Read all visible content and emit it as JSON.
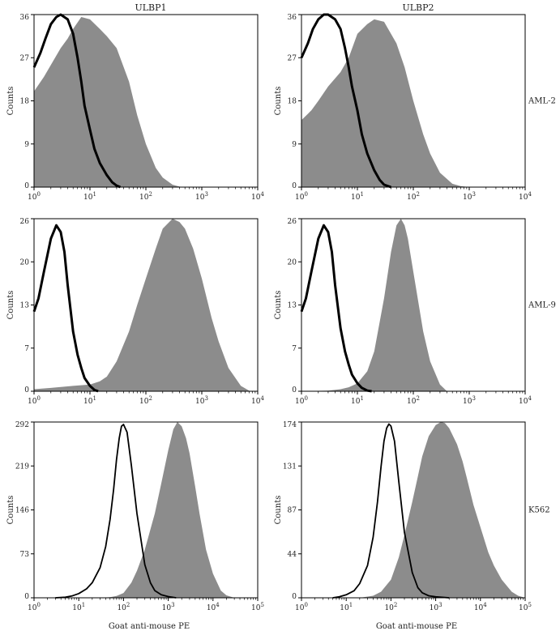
{
  "chart_data": [
    {
      "type": "area",
      "column_title": "ULBP1",
      "row_label": "",
      "ylabel": "Counts",
      "xlabel": "",
      "x_scale": "log",
      "xlim_exp": [
        0,
        4
      ],
      "x_tick_base": "10",
      "x_tick_exps": [
        "0",
        "1",
        "2",
        "3",
        "4"
      ],
      "yticks": [
        "0",
        "9",
        "18",
        "27",
        "36"
      ],
      "ylim": [
        0,
        36
      ],
      "series": [
        {
          "name": "",
          "style": "filled",
          "x": [
            1,
            1.5,
            2,
            3,
            4,
            5,
            7,
            10,
            15,
            20,
            30,
            50,
            70,
            100,
            150,
            200,
            300,
            400,
            500
          ],
          "y": [
            20,
            23,
            25.5,
            29,
            31,
            33,
            35.5,
            35,
            33,
            31.5,
            29,
            22,
            15,
            9,
            4,
            2,
            0.5,
            0.1,
            0
          ]
        },
        {
          "name": "",
          "style": "outline",
          "x": [
            1,
            1.3,
            1.6,
            2,
            2.5,
            3,
            4,
            5,
            6,
            7,
            8,
            10,
            12,
            15,
            20,
            25,
            30,
            35
          ],
          "y": [
            25,
            28,
            31,
            34,
            35.5,
            36,
            35,
            32,
            27,
            22,
            17,
            12,
            8,
            5,
            2.5,
            1,
            0.3,
            0
          ]
        }
      ]
    },
    {
      "type": "area",
      "column_title": "ULBP2",
      "row_label": "AML-2",
      "ylabel": "Counts",
      "xlabel": "",
      "x_scale": "log",
      "xlim_exp": [
        0,
        4
      ],
      "x_tick_base": "10",
      "x_tick_exps": [
        "0",
        "1",
        "2",
        "3",
        "4"
      ],
      "yticks": [
        "0",
        "9",
        "18",
        "27",
        "36"
      ],
      "ylim": [
        0,
        36
      ],
      "series": [
        {
          "name": "",
          "style": "filled",
          "x": [
            1,
            1.5,
            2,
            3,
            5,
            7,
            10,
            15,
            20,
            30,
            50,
            70,
            100,
            150,
            200,
            300,
            500,
            700,
            1000
          ],
          "y": [
            14,
            16,
            18,
            21,
            24,
            27,
            32,
            34,
            35,
            34.5,
            30,
            25,
            18,
            11,
            7,
            3,
            0.7,
            0.2,
            0
          ]
        },
        {
          "name": "",
          "style": "outline",
          "x": [
            1,
            1.3,
            1.6,
            2,
            2.5,
            3,
            4,
            5,
            6,
            7,
            8,
            10,
            12,
            15,
            20,
            25,
            30,
            40
          ],
          "y": [
            27,
            30,
            33,
            35,
            36,
            36,
            35,
            33,
            29,
            25,
            21,
            16,
            11,
            7,
            3.5,
            1.5,
            0.5,
            0
          ]
        }
      ]
    },
    {
      "type": "area",
      "column_title": "",
      "row_label": "",
      "ylabel": "Counts",
      "xlabel": "",
      "x_scale": "log",
      "xlim_exp": [
        0,
        4
      ],
      "x_tick_base": "10",
      "x_tick_exps": [
        "0",
        "1",
        "2",
        "3",
        "4"
      ],
      "yticks": [
        "0",
        "7",
        "13",
        "20",
        "26"
      ],
      "ylim": [
        0,
        26
      ],
      "series": [
        {
          "name": "",
          "style": "filled",
          "x": [
            1,
            2,
            5,
            10,
            15,
            20,
            30,
            50,
            70,
            100,
            150,
            200,
            300,
            400,
            500,
            700,
            1000,
            1500,
            2000,
            3000,
            5000,
            7000
          ],
          "y": [
            0.3,
            0.5,
            0.8,
            1,
            1.5,
            2.2,
            4.5,
            9,
            13,
            17,
            21.5,
            24.5,
            26,
            25.5,
            24.5,
            21.5,
            17,
            11,
            7.5,
            3.5,
            0.8,
            0.1
          ]
        },
        {
          "name": "",
          "style": "outline",
          "x": [
            1,
            1.2,
            1.5,
            2,
            2.5,
            3,
            3.5,
            4,
            5,
            6,
            7,
            8,
            10,
            12,
            14
          ],
          "y": [
            12,
            14,
            18,
            23,
            25,
            24,
            21,
            16,
            9,
            5.5,
            3.5,
            2,
            0.8,
            0.2,
            0
          ]
        }
      ]
    },
    {
      "type": "area",
      "column_title": "",
      "row_label": "AML-9",
      "ylabel": "Counts",
      "xlabel": "",
      "x_scale": "log",
      "xlim_exp": [
        0,
        4
      ],
      "x_tick_base": "10",
      "x_tick_exps": [
        "0",
        "1",
        "2",
        "3",
        "4"
      ],
      "yticks": [
        "0",
        "7",
        "13",
        "20",
        "26"
      ],
      "ylim": [
        0,
        26
      ],
      "series": [
        {
          "name": "",
          "style": "filled",
          "x": [
            1,
            3,
            5,
            7,
            10,
            15,
            20,
            30,
            40,
            50,
            60,
            70,
            80,
            100,
            150,
            200,
            300,
            400
          ],
          "y": [
            0,
            0.1,
            0.3,
            0.6,
            1.2,
            3,
            6,
            14,
            21,
            25,
            26,
            25,
            23,
            18,
            9,
            4.5,
            1,
            0
          ]
        },
        {
          "name": "",
          "style": "outline",
          "x": [
            1,
            1.2,
            1.5,
            2,
            2.5,
            3,
            3.5,
            4,
            5,
            6,
            7,
            8,
            10,
            12,
            15,
            18
          ],
          "y": [
            12,
            14,
            18,
            23,
            25,
            24,
            21,
            16,
            9.5,
            6,
            4,
            2.5,
            1.2,
            0.5,
            0.1,
            0
          ]
        }
      ]
    },
    {
      "type": "area",
      "column_title": "",
      "row_label": "",
      "ylabel": "Counts",
      "xlabel": "Goat anti-mouse PE",
      "x_scale": "log",
      "xlim_exp": [
        0,
        5
      ],
      "x_tick_base": "10",
      "x_tick_exps": [
        "0",
        "1",
        "2",
        "3",
        "4",
        "5"
      ],
      "yticks": [
        "0",
        "73",
        "146",
        "219",
        "292"
      ],
      "ylim": [
        0,
        292
      ],
      "series": [
        {
          "name": "",
          "style": "filled",
          "x": [
            30,
            50,
            70,
            100,
            150,
            200,
            300,
            500,
            700,
            1000,
            1300,
            1600,
            2000,
            2500,
            3000,
            4000,
            5000,
            7000,
            10000,
            15000,
            20000,
            30000
          ],
          "y": [
            0,
            1,
            3,
            8,
            25,
            45,
            80,
            140,
            190,
            245,
            280,
            292,
            285,
            265,
            240,
            185,
            140,
            80,
            40,
            12,
            4,
            0
          ]
        },
        {
          "name": "",
          "style": "outline",
          "x": [
            3,
            5,
            7,
            10,
            15,
            20,
            30,
            40,
            50,
            60,
            70,
            80,
            90,
            100,
            120,
            150,
            200,
            300,
            400,
            500,
            700,
            1000,
            1500
          ],
          "y": [
            0,
            1,
            3,
            7,
            15,
            25,
            50,
            85,
            130,
            180,
            230,
            265,
            285,
            288,
            275,
            220,
            140,
            55,
            25,
            12,
            5,
            2,
            0
          ]
        }
      ]
    },
    {
      "type": "area",
      "column_title": "",
      "row_label": "K562",
      "ylabel": "Counts",
      "xlabel": "Goat anti-mouse PE",
      "x_scale": "log",
      "xlim_exp": [
        0,
        5
      ],
      "x_tick_base": "10",
      "x_tick_exps": [
        "0",
        "1",
        "2",
        "3",
        "4",
        "5"
      ],
      "yticks": [
        "0",
        "44",
        "87",
        "131",
        "174"
      ],
      "ylim": [
        0,
        174
      ],
      "series": [
        {
          "name": "",
          "style": "filled",
          "x": [
            20,
            40,
            60,
            100,
            150,
            200,
            300,
            400,
            500,
            700,
            1000,
            1300,
            1600,
            2000,
            3000,
            4000,
            5000,
            7000,
            10000,
            15000,
            20000,
            30000,
            50000,
            70000,
            100000
          ],
          "y": [
            0,
            2,
            6,
            18,
            40,
            62,
            95,
            120,
            140,
            160,
            171,
            174,
            173,
            168,
            152,
            135,
            118,
            92,
            70,
            45,
            32,
            18,
            6,
            2,
            0
          ]
        },
        {
          "name": "",
          "style": "outline",
          "x": [
            5,
            7,
            10,
            15,
            20,
            30,
            40,
            50,
            60,
            70,
            80,
            90,
            100,
            120,
            150,
            200,
            300,
            400,
            500,
            700,
            1000,
            2000
          ],
          "y": [
            0,
            1,
            3,
            7,
            14,
            32,
            60,
            95,
            130,
            155,
            168,
            172,
            170,
            155,
            115,
            65,
            25,
            10,
            5,
            2,
            1,
            0
          ]
        }
      ]
    }
  ]
}
